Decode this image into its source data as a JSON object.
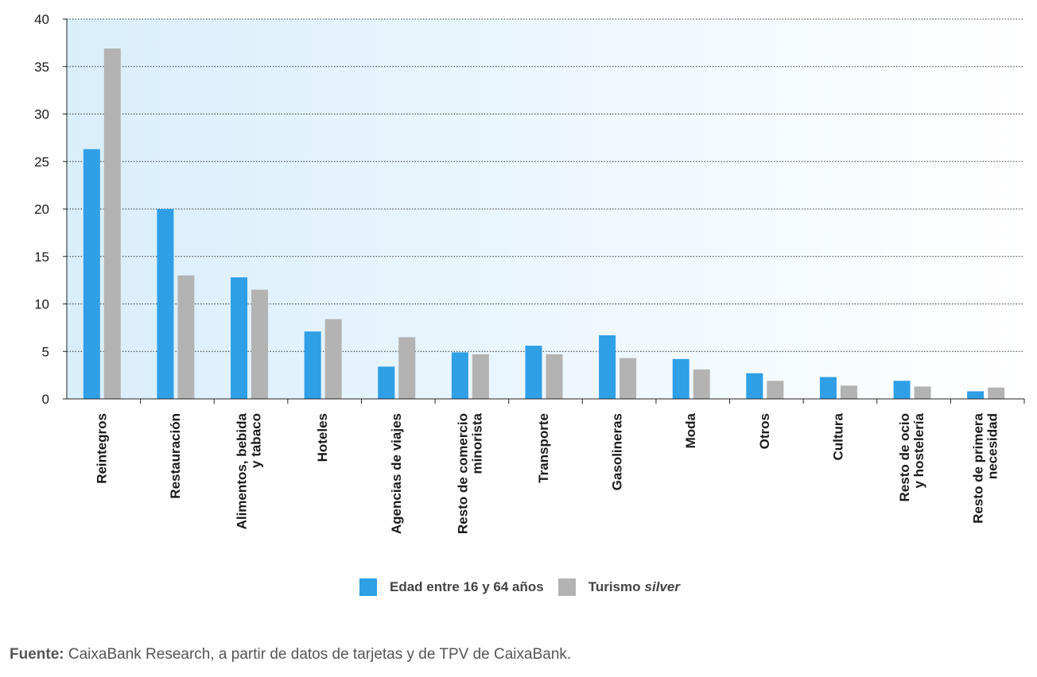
{
  "colors": {
    "series1": "#2f9fe6",
    "series2": "#b3b3b3",
    "grid": "#333333",
    "bg_left": "#d9eefb",
    "bg_right": "#ffffff"
  },
  "legend": {
    "s1_label": "Edad entre 16 y 64 años",
    "s2_prefix": "Turismo",
    "s2_italic": "silver"
  },
  "source": {
    "label": "Fuente:",
    "text": "CaixaBank Research, a partir de datos de tarjetas y de TPV de CaixaBank."
  },
  "chart_data": {
    "type": "bar",
    "title": "",
    "xlabel": "",
    "ylabel": "",
    "ylim": [
      0,
      40
    ],
    "yticks": [
      0,
      5,
      10,
      15,
      20,
      25,
      30,
      35,
      40
    ],
    "grid": true,
    "categories": [
      [
        "Reintegros"
      ],
      [
        "Restauración"
      ],
      [
        "Alimentos, bebida",
        "y tabaco"
      ],
      [
        "Hoteles"
      ],
      [
        "Agencias de viajes"
      ],
      [
        "Resto de comercio",
        "minorista"
      ],
      [
        "Transporte"
      ],
      [
        "Gasolineras"
      ],
      [
        "Moda"
      ],
      [
        "Otros"
      ],
      [
        "Cultura"
      ],
      [
        "Resto de ocio",
        "y hostelería"
      ],
      [
        "Resto de primera",
        "necesidad"
      ]
    ],
    "series": [
      {
        "name": "Edad entre 16 y 64 años",
        "values": [
          26.3,
          20.0,
          12.8,
          7.1,
          3.4,
          4.9,
          5.6,
          6.7,
          4.2,
          2.7,
          2.3,
          1.9,
          0.8
        ]
      },
      {
        "name": "Turismo silver",
        "values": [
          36.9,
          13.0,
          11.5,
          8.4,
          6.5,
          4.7,
          4.7,
          4.3,
          3.1,
          1.9,
          1.4,
          1.3,
          1.2
        ]
      }
    ]
  }
}
